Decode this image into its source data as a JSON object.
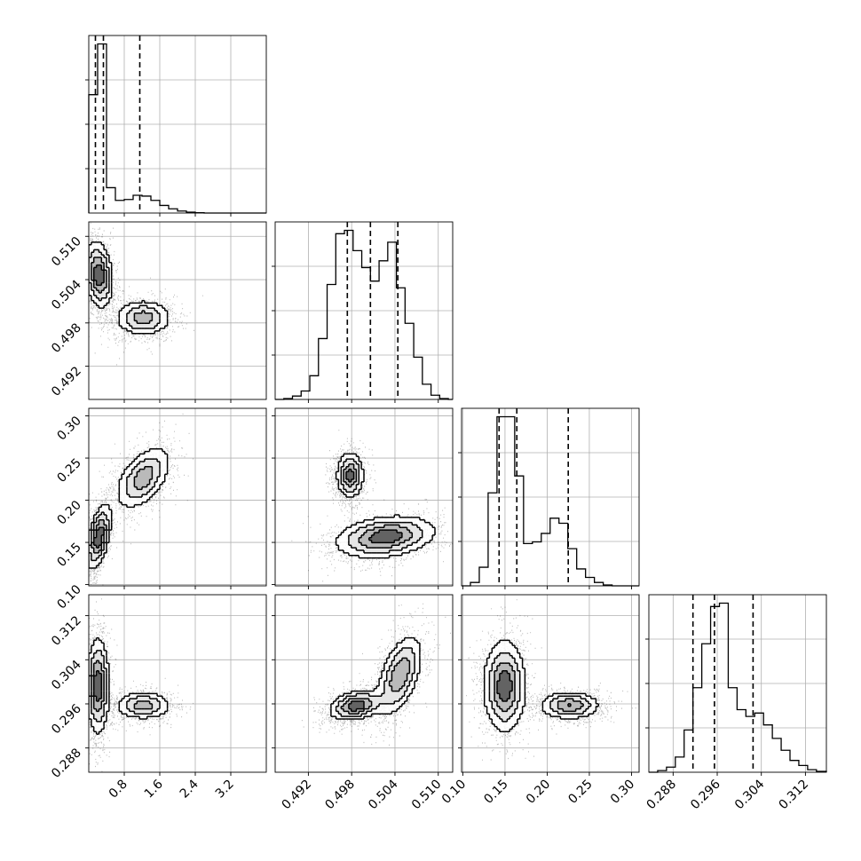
{
  "chart_data": {
    "type": "corner",
    "parameters": [
      {
        "range": [
          0,
          4.0
        ],
        "ticks": [
          0.8,
          1.6,
          2.4,
          3.2
        ],
        "tick_labels": [
          "0.8",
          "1.6",
          "2.4",
          "3.2"
        ],
        "quantiles": [
          0.15,
          0.33,
          1.15
        ]
      },
      {
        "range": [
          0.4874,
          0.512
        ],
        "ticks": [
          0.492,
          0.498,
          0.504,
          0.51
        ],
        "tick_labels": [
          "0.492",
          "0.498",
          "0.504",
          "0.510"
        ],
        "quantiles": [
          0.4974,
          0.5006,
          0.5044
        ]
      },
      {
        "range": [
          0.0985,
          0.309
        ],
        "ticks": [
          0.1,
          0.15,
          0.2,
          0.25,
          0.3
        ],
        "tick_labels": [
          "0.10",
          "0.15",
          "0.20",
          "0.25",
          "0.30"
        ],
        "quantiles": [
          0.143,
          0.164,
          0.225
        ]
      },
      {
        "range": [
          0.2836,
          0.3158
        ],
        "ticks": [
          0.288,
          0.296,
          0.304,
          0.312
        ],
        "tick_labels": [
          "0.288",
          "0.296",
          "0.304",
          "0.312"
        ],
        "quantiles": [
          0.2916,
          0.2955,
          0.3025
        ]
      }
    ],
    "histograms": [
      {
        "bins": [
          0,
          0.2,
          0.4,
          0.6,
          0.8,
          1.0,
          1.2,
          1.4,
          1.6,
          1.8,
          2.0,
          2.2,
          2.4,
          2.6,
          2.8,
          3.0,
          3.2,
          3.4,
          3.6,
          3.8,
          4.0
        ],
        "counts": [
          0.7,
          1.0,
          0.15,
          0.075,
          0.08,
          0.105,
          0.1,
          0.075,
          0.045,
          0.025,
          0.012,
          0.005,
          0.002,
          0,
          0,
          0,
          0,
          0,
          0,
          0
        ]
      },
      {
        "bins": [
          0.4874,
          0.4886,
          0.4898,
          0.491,
          0.4922,
          0.4934,
          0.4946,
          0.4958,
          0.497,
          0.4982,
          0.4994,
          0.5006,
          0.5018,
          0.503,
          0.5042,
          0.5054,
          0.5066,
          0.5078,
          0.509,
          0.5102,
          0.5114,
          0.512
        ],
        "counts": [
          0.0,
          0.005,
          0.02,
          0.05,
          0.14,
          0.36,
          0.68,
          0.98,
          1.0,
          0.88,
          0.78,
          0.7,
          0.82,
          0.93,
          0.66,
          0.45,
          0.25,
          0.09,
          0.025,
          0.005,
          0.0
        ]
      },
      {
        "bins": [
          0.0985,
          0.109,
          0.1195,
          0.13,
          0.1405,
          0.151,
          0.1615,
          0.172,
          0.1825,
          0.193,
          0.2035,
          0.214,
          0.2245,
          0.235,
          0.2455,
          0.256,
          0.2665,
          0.277,
          0.2875,
          0.298,
          0.309
        ],
        "counts": [
          0.0,
          0.02,
          0.11,
          0.55,
          1.0,
          1.0,
          0.65,
          0.25,
          0.26,
          0.31,
          0.4,
          0.37,
          0.22,
          0.1,
          0.05,
          0.02,
          0.005,
          0.0,
          0.0,
          0.0
        ]
      },
      {
        "bins": [
          0.2836,
          0.2852,
          0.2868,
          0.2884,
          0.29,
          0.2916,
          0.2932,
          0.2948,
          0.2964,
          0.298,
          0.2996,
          0.3012,
          0.3028,
          0.3044,
          0.306,
          0.3076,
          0.3092,
          0.3108,
          0.3124,
          0.314,
          0.3158
        ],
        "counts": [
          0.0,
          0.01,
          0.03,
          0.09,
          0.25,
          0.5,
          0.76,
          0.98,
          1.0,
          0.5,
          0.37,
          0.33,
          0.35,
          0.28,
          0.2,
          0.13,
          0.07,
          0.04,
          0.015,
          0.005
        ]
      }
    ],
    "pairs": [
      {
        "x": 0,
        "y": 1,
        "modes": [
          {
            "cx": 0.2,
            "cy": 0.5045,
            "sx": 0.15,
            "sy": 0.0022,
            "w": 1.0,
            "rho": -0.2
          },
          {
            "cx": 1.2,
            "cy": 0.4985,
            "sx": 0.3,
            "sy": 0.0012,
            "w": 0.7,
            "rho": 0.0
          }
        ]
      },
      {
        "x": 0,
        "y": 2,
        "modes": [
          {
            "cx": 0.2,
            "cy": 0.155,
            "sx": 0.13,
            "sy": 0.018,
            "w": 1.0,
            "rho": 0.5
          },
          {
            "cx": 1.2,
            "cy": 0.225,
            "sx": 0.3,
            "sy": 0.018,
            "w": 0.7,
            "rho": 0.5
          }
        ]
      },
      {
        "x": 1,
        "y": 2,
        "modes": [
          {
            "cx": 0.4976,
            "cy": 0.228,
            "sx": 0.0009,
            "sy": 0.013,
            "w": 0.9,
            "rho": 0.0
          },
          {
            "cx": 0.5025,
            "cy": 0.155,
            "sx": 0.0033,
            "sy": 0.012,
            "w": 1.0,
            "rho": 0.25
          }
        ]
      },
      {
        "x": 0,
        "y": 3,
        "modes": [
          {
            "cx": 0.18,
            "cy": 0.299,
            "sx": 0.12,
            "sy": 0.0042,
            "w": 1.0,
            "rho": 0.0
          },
          {
            "cx": 1.2,
            "cy": 0.2955,
            "sx": 0.3,
            "sy": 0.0012,
            "w": 0.7,
            "rho": 0.0
          }
        ]
      },
      {
        "x": 1,
        "y": 3,
        "modes": [
          {
            "cx": 0.4985,
            "cy": 0.2955,
            "sx": 0.0018,
            "sy": 0.0013,
            "w": 1.0,
            "rho": 0.3
          },
          {
            "cx": 0.5045,
            "cy": 0.301,
            "sx": 0.0015,
            "sy": 0.0035,
            "w": 0.8,
            "rho": 0.5
          }
        ]
      },
      {
        "x": 2,
        "y": 3,
        "modes": [
          {
            "cx": 0.148,
            "cy": 0.299,
            "sx": 0.012,
            "sy": 0.004,
            "w": 1.0,
            "rho": 0.0
          },
          {
            "cx": 0.225,
            "cy": 0.2955,
            "sx": 0.017,
            "sy": 0.0012,
            "w": 0.8,
            "rho": 0.0
          }
        ]
      }
    ]
  }
}
